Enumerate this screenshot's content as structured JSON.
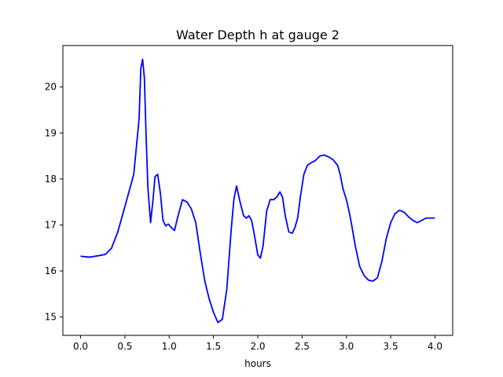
{
  "chart_data": {
    "type": "line",
    "title": "Water Depth h at gauge 2",
    "xlabel": "hours",
    "ylabel": "",
    "xlim": [
      -0.2,
      4.2
    ],
    "ylim": [
      14.6,
      20.9
    ],
    "grid": false,
    "x_ticks": [
      "0.0",
      "0.5",
      "1.0",
      "1.5",
      "2.0",
      "2.5",
      "3.0",
      "3.5",
      "4.0"
    ],
    "y_ticks": [
      "15",
      "16",
      "17",
      "18",
      "19",
      "20"
    ],
    "series": [
      {
        "color": "#0000ff",
        "x": [
          0.0,
          0.1,
          0.2,
          0.28,
          0.35,
          0.42,
          0.5,
          0.55,
          0.6,
          0.63,
          0.66,
          0.68,
          0.7,
          0.72,
          0.74,
          0.76,
          0.79,
          0.82,
          0.84,
          0.87,
          0.9,
          0.93,
          0.96,
          0.99,
          1.02,
          1.06,
          1.1,
          1.15,
          1.2,
          1.25,
          1.3,
          1.35,
          1.4,
          1.45,
          1.5,
          1.55,
          1.6,
          1.65,
          1.7,
          1.73,
          1.76,
          1.8,
          1.84,
          1.87,
          1.9,
          1.93,
          1.96,
          2.0,
          2.03,
          2.06,
          2.1,
          2.14,
          2.18,
          2.22,
          2.25,
          2.28,
          2.31,
          2.35,
          2.39,
          2.42,
          2.45,
          2.48,
          2.52,
          2.56,
          2.6,
          2.65,
          2.7,
          2.75,
          2.8,
          2.85,
          2.9,
          2.93,
          2.96,
          3.0,
          3.03,
          3.06,
          3.1,
          3.15,
          3.2,
          3.25,
          3.3,
          3.35,
          3.4,
          3.45,
          3.5,
          3.55,
          3.6,
          3.65,
          3.7,
          3.75,
          3.8,
          3.85,
          3.9,
          3.95,
          4.0
        ],
        "y": [
          16.32,
          16.3,
          16.33,
          16.36,
          16.5,
          16.85,
          17.4,
          17.75,
          18.1,
          18.7,
          19.3,
          20.4,
          20.6,
          20.2,
          18.9,
          17.8,
          17.05,
          17.6,
          18.05,
          18.1,
          17.7,
          17.1,
          16.98,
          17.02,
          16.95,
          16.88,
          17.2,
          17.55,
          17.5,
          17.35,
          17.05,
          16.4,
          15.8,
          15.4,
          15.1,
          14.88,
          14.95,
          15.6,
          16.9,
          17.55,
          17.85,
          17.5,
          17.2,
          17.15,
          17.2,
          17.1,
          16.8,
          16.35,
          16.28,
          16.55,
          17.3,
          17.55,
          17.55,
          17.62,
          17.72,
          17.6,
          17.2,
          16.85,
          16.82,
          16.95,
          17.15,
          17.6,
          18.1,
          18.3,
          18.35,
          18.4,
          18.5,
          18.52,
          18.48,
          18.42,
          18.3,
          18.1,
          17.8,
          17.55,
          17.3,
          17.0,
          16.55,
          16.1,
          15.9,
          15.8,
          15.78,
          15.85,
          16.2,
          16.7,
          17.05,
          17.25,
          17.32,
          17.28,
          17.18,
          17.1,
          17.05,
          17.1,
          17.15,
          17.15,
          17.15
        ]
      }
    ]
  }
}
